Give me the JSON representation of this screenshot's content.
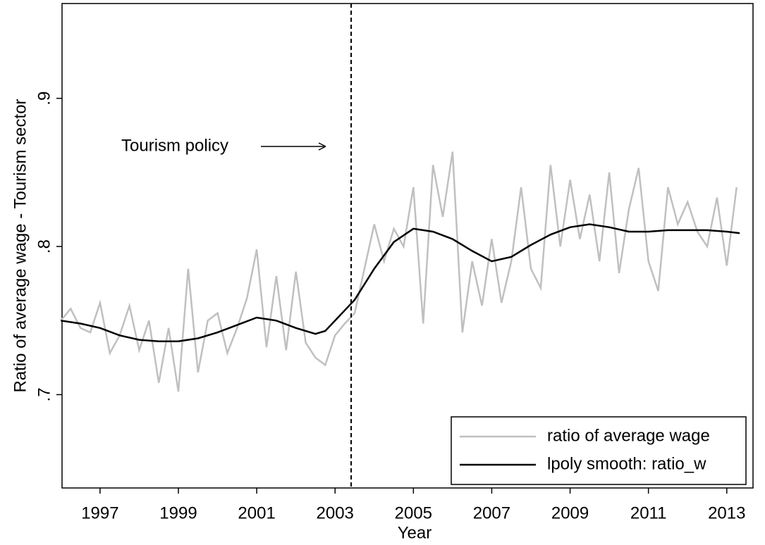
{
  "chart_data": {
    "type": "line",
    "x_label": "Year",
    "y_label": "Ratio of average wage - Tourism sector",
    "annotation": "Tourism policy",
    "vline": 2003.41,
    "xlim": [
      1996.03,
      2013.67
    ],
    "xticks": [
      1997,
      1999,
      2001,
      2003,
      2005,
      2007,
      2009,
      2011,
      2013
    ],
    "ylim": [
      0.637,
      0.964
    ],
    "yticks": [
      {
        "value": 0.7,
        "label": ".7"
      },
      {
        "value": 0.8,
        "label": ".8"
      },
      {
        "value": 0.9,
        "label": ".9"
      }
    ],
    "legend": "lower right",
    "series": [
      {
        "name": "ratio of average wage",
        "color": "#c0c0c0",
        "x": [
          1996.0,
          1996.25,
          1996.5,
          1996.75,
          1997.0,
          1997.25,
          1997.5,
          1997.75,
          1998.0,
          1998.25,
          1998.5,
          1998.75,
          1999.0,
          1999.25,
          1999.5,
          1999.75,
          2000.0,
          2000.25,
          2000.5,
          2000.75,
          2001.0,
          2001.25,
          2001.5,
          2001.75,
          2002.0,
          2002.25,
          2002.5,
          2002.75,
          2003.0,
          2003.25,
          2003.5,
          2003.75,
          2004.0,
          2004.25,
          2004.5,
          2004.75,
          2005.0,
          2005.25,
          2005.5,
          2005.75,
          2006.0,
          2006.25,
          2006.5,
          2006.75,
          2007.0,
          2007.25,
          2007.5,
          2007.75,
          2008.0,
          2008.25,
          2008.5,
          2008.75,
          2009.0,
          2009.25,
          2009.5,
          2009.75,
          2010.0,
          2010.25,
          2010.5,
          2010.75,
          2011.0,
          2011.25,
          2011.5,
          2011.75,
          2012.0,
          2012.25,
          2012.5,
          2012.75,
          2013.0,
          2013.25
        ],
        "values": [
          0.75,
          0.758,
          0.745,
          0.742,
          0.762,
          0.728,
          0.74,
          0.76,
          0.73,
          0.75,
          0.708,
          0.745,
          0.702,
          0.785,
          0.715,
          0.75,
          0.755,
          0.728,
          0.745,
          0.765,
          0.798,
          0.732,
          0.78,
          0.73,
          0.783,
          0.735,
          0.725,
          0.72,
          0.74,
          0.748,
          0.755,
          0.785,
          0.815,
          0.79,
          0.812,
          0.8,
          0.84,
          0.748,
          0.855,
          0.82,
          0.864,
          0.742,
          0.79,
          0.76,
          0.805,
          0.762,
          0.79,
          0.84,
          0.785,
          0.772,
          0.855,
          0.8,
          0.845,
          0.805,
          0.835,
          0.79,
          0.85,
          0.782,
          0.825,
          0.853,
          0.79,
          0.77,
          0.84,
          0.815,
          0.83,
          0.81,
          0.8,
          0.833,
          0.787,
          0.84
        ]
      },
      {
        "name": "lpoly smooth: ratio_w",
        "color": "#000000",
        "x": [
          1996.0,
          1996.5,
          1997.0,
          1997.5,
          1998.0,
          1998.5,
          1999.0,
          1999.5,
          2000.0,
          2000.5,
          2001.0,
          2001.5,
          2002.0,
          2002.5,
          2002.75,
          2003.0,
          2003.5,
          2004.0,
          2004.5,
          2005.0,
          2005.5,
          2006.0,
          2006.5,
          2007.0,
          2007.5,
          2008.0,
          2008.5,
          2009.0,
          2009.5,
          2010.0,
          2010.5,
          2011.0,
          2011.5,
          2012.0,
          2012.5,
          2013.0,
          2013.33
        ],
        "values": [
          0.75,
          0.748,
          0.745,
          0.74,
          0.737,
          0.736,
          0.736,
          0.738,
          0.742,
          0.747,
          0.752,
          0.75,
          0.745,
          0.741,
          0.743,
          0.75,
          0.764,
          0.785,
          0.803,
          0.812,
          0.81,
          0.805,
          0.797,
          0.79,
          0.793,
          0.801,
          0.808,
          0.813,
          0.815,
          0.813,
          0.81,
          0.81,
          0.811,
          0.811,
          0.811,
          0.81,
          0.809
        ]
      }
    ]
  }
}
